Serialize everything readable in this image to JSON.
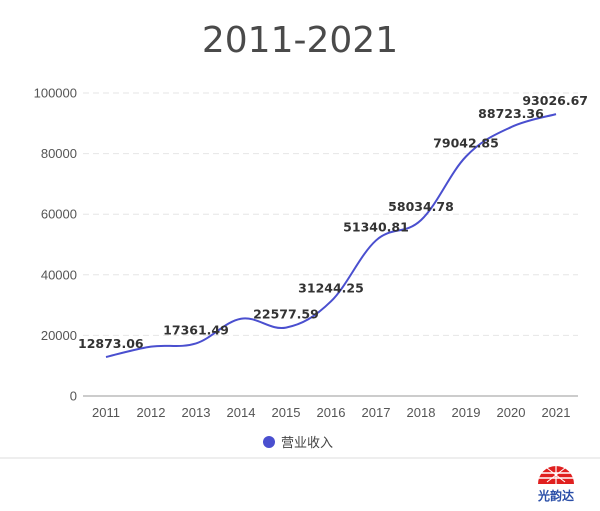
{
  "chart_data": {
    "type": "line",
    "title": "2011-2021",
    "categories": [
      "2011",
      "2012",
      "2013",
      "2014",
      "2015",
      "2016",
      "2017",
      "2018",
      "2019",
      "2020",
      "2021"
    ],
    "series": [
      {
        "name": "营业收入",
        "color": "#4a4fcf",
        "values": [
          12873.06,
          16300,
          17361.49,
          25500,
          22577.59,
          31244.25,
          51340.81,
          58034.78,
          79042.85,
          88723.36,
          93026.67
        ],
        "labels": [
          "12873.06",
          "",
          "17361.49",
          "",
          "22577.59",
          "31244.25",
          "51340.81",
          "58034.78",
          "79042.85",
          "88723.36",
          "93026.67"
        ]
      }
    ],
    "ylim": [
      0,
      100000
    ],
    "yticks": [
      "0",
      "20000",
      "40000",
      "60000",
      "80000",
      "100000"
    ],
    "grid": true,
    "legend": "bottom-center"
  },
  "logo": {
    "text": "光韵达",
    "icon": "sunrise-logo-icon",
    "color": "#e02020"
  }
}
